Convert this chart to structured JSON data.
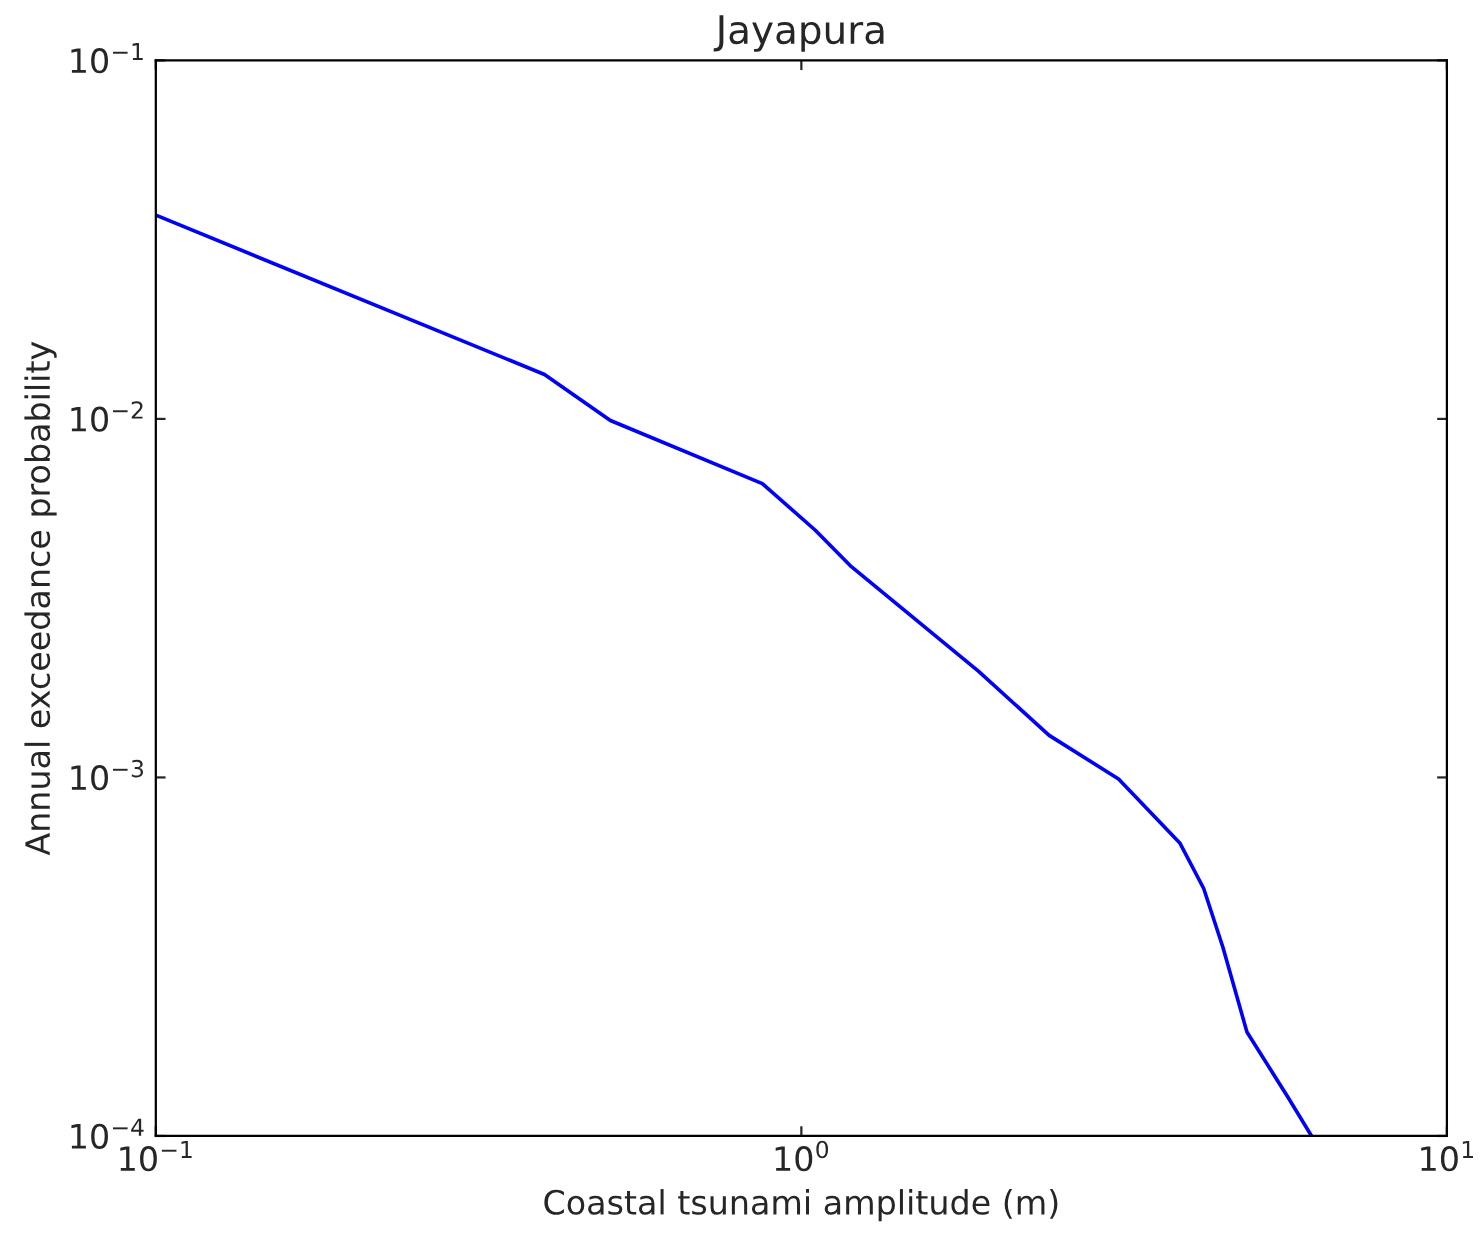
{
  "chart_data": {
    "type": "line",
    "title": "Jayapura",
    "xlabel": "Coastal tsunami amplitude (m)",
    "ylabel": "Annual exceedance probability",
    "log": "xy",
    "grid": false,
    "series": [
      {
        "color": "#0000ff",
        "x": [
          0.1,
          0.4,
          0.506,
          0.87,
          1.05,
          1.19,
          1.88,
          2.42,
          3.1,
          3.86,
          4.2,
          4.5,
          4.9,
          5.66,
          6.17
        ],
        "values": [
          0.037,
          0.0133,
          0.0099,
          0.0066,
          0.0049,
          0.0039,
          0.00198,
          0.00131,
          0.00099,
          0.000655,
          0.00049,
          0.000335,
          0.000195,
          0.000129,
          0.0001
        ]
      }
    ],
    "xlim": [
      0.1,
      10
    ],
    "xticks": [
      {
        "value": 0.1,
        "label": "10$^{−1}$"
      },
      {
        "value": 1,
        "label": "10$^{0}$"
      },
      {
        "value": 10,
        "label": "10$^{1}$"
      }
    ],
    "ylim": [
      0.0001,
      0.1
    ],
    "yticks": [
      {
        "value": 0.0001,
        "label": "10$^{−4}$"
      },
      {
        "value": 0.001,
        "label": "10$^{−3}$"
      },
      {
        "value": 0.01,
        "label": "10$^{−2}$"
      },
      {
        "value": 0.1,
        "label": "10$^{−1}$"
      }
    ]
  }
}
